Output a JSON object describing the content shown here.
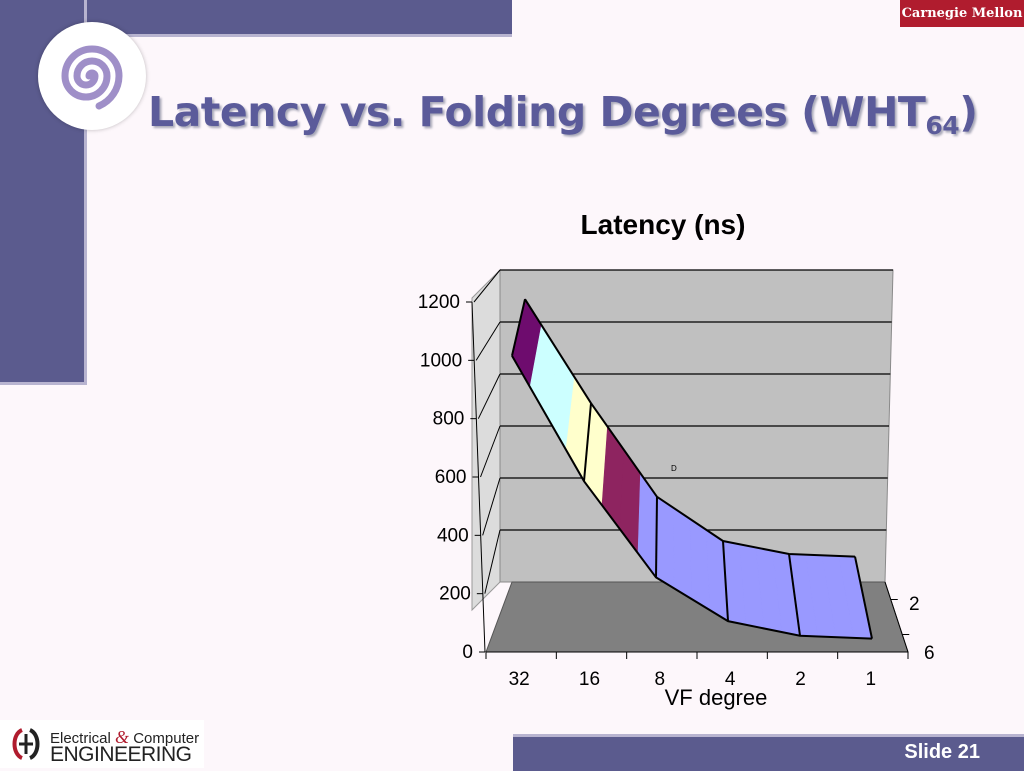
{
  "header": {
    "brand": "Carnegie Mellon",
    "title": "Latency vs. Folding Degrees (WHT",
    "title_sub": "64",
    "title_end": ")"
  },
  "footer": {
    "logo_line1_a": "Electrical ",
    "logo_line1_amp": "&",
    "logo_line1_b": " Computer",
    "logo_line2": "ENGINEERING",
    "slide_label": "Slide 21"
  },
  "colors": {
    "band_1": "#6e0c6e",
    "band_2": "#ccffff",
    "band_3": "#ffffcc",
    "band_4": "#8e2460",
    "band_5": "#9999ff"
  },
  "chart_data": {
    "type": "surface",
    "title": "Latency (ns)",
    "xlabel": "VF degree",
    "ylabel": "",
    "categories": [
      "32",
      "16",
      "8",
      "4",
      "2",
      "1"
    ],
    "depth_labels": [
      "2",
      "6"
    ],
    "yticks": [
      "0",
      "200",
      "400",
      "600",
      "800",
      "1000",
      "1200"
    ],
    "ylim": [
      0,
      1200
    ],
    "series": [
      {
        "values": [
          1080,
          680,
          320,
          150,
          100,
          90
        ]
      },
      {
        "values": [
          1050,
          620,
          290,
          140,
          90,
          80
        ]
      }
    ],
    "annotation": "D",
    "grid": true
  }
}
